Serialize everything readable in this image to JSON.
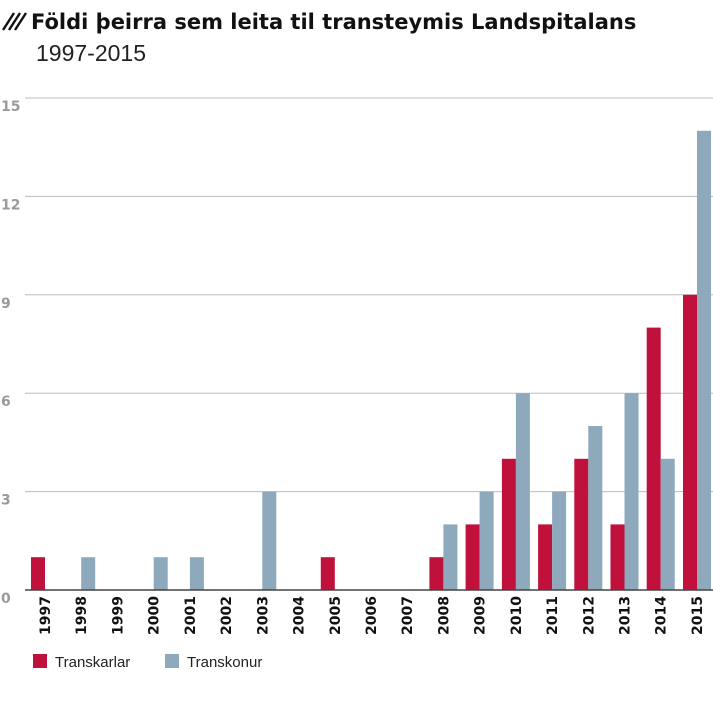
{
  "chart_data": {
    "type": "bar",
    "title": "Földi þeirra sem leita til transteymis Landspitalans",
    "subtitle": "1997-2015",
    "categories": [
      "1997",
      "1998",
      "1999",
      "2000",
      "2001",
      "2002",
      "2003",
      "2004",
      "2005",
      "2006",
      "2007",
      "2008",
      "2009",
      "2010",
      "2011",
      "2012",
      "2013",
      "2014",
      "2015"
    ],
    "series": [
      {
        "name": "Transkarlar",
        "color": "#c0103c",
        "values": [
          1,
          0,
          0,
          0,
          0,
          0,
          0,
          0,
          1,
          0,
          0,
          1,
          2,
          4,
          2,
          4,
          2,
          8,
          9
        ]
      },
      {
        "name": "Transkonur",
        "color": "#8ea9bb",
        "values": [
          0,
          1,
          0,
          1,
          1,
          0,
          3,
          0,
          0,
          0,
          0,
          2,
          3,
          6,
          3,
          5,
          6,
          4,
          14
        ]
      }
    ],
    "ylim": [
      0,
      15
    ],
    "yticks": [
      0,
      3,
      6,
      9,
      12,
      15
    ],
    "grid": true,
    "legend_position": "bottom-left"
  }
}
